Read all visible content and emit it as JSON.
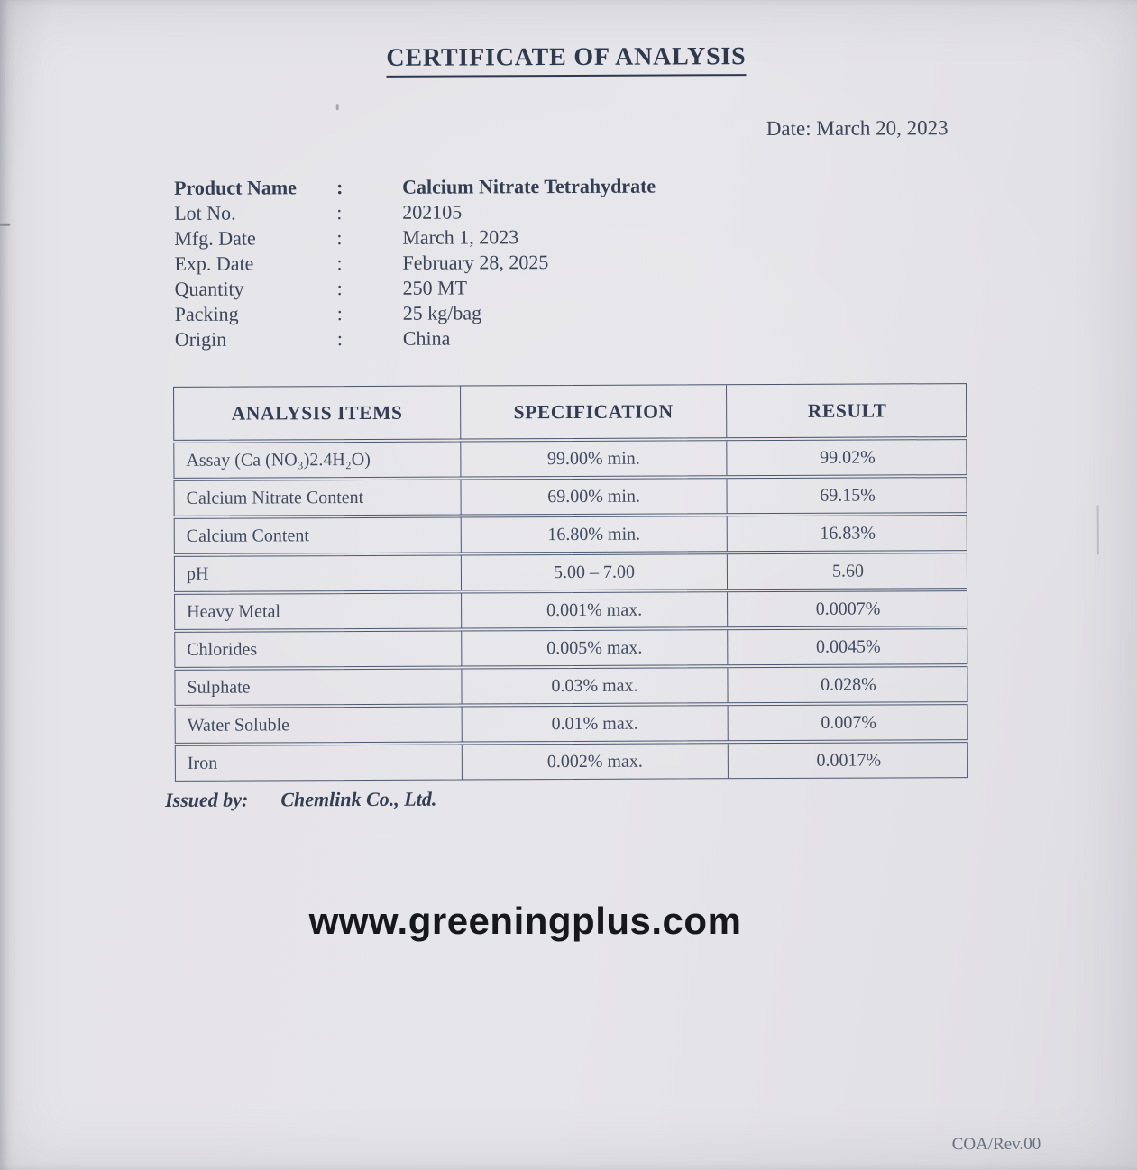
{
  "document": {
    "title": "CERTIFICATE OF ANALYSIS",
    "date_line": "Date: March 20, 2023",
    "info_fields": [
      {
        "label": "Product Name",
        "separator": ":",
        "value": "Calcium Nitrate Tetrahydrate",
        "bold": true
      },
      {
        "label": "Lot No.",
        "separator": ":",
        "value": "202105",
        "bold": false
      },
      {
        "label": "Mfg. Date",
        "separator": ":",
        "value": "March 1, 2023",
        "bold": false
      },
      {
        "label": "Exp. Date",
        "separator": ":",
        "value": "February 28, 2025",
        "bold": false
      },
      {
        "label": "Quantity",
        "separator": ":",
        "value": "250 MT",
        "bold": false
      },
      {
        "label": "Packing",
        "separator": ":",
        "value": "25 kg/bag",
        "bold": false
      },
      {
        "label": "Origin",
        "separator": ":",
        "value": "China",
        "bold": false
      }
    ],
    "table": {
      "headers": [
        "ANALYSIS ITEMS",
        "SPECIFICATION",
        "RESULT"
      ],
      "rows": [
        {
          "item": "Assay (Ca (NO₃)2.4H₂O)",
          "specification": "99.00% min.",
          "result": "99.02%"
        },
        {
          "item": "Calcium Nitrate Content",
          "specification": "69.00% min.",
          "result": "69.15%"
        },
        {
          "item": "Calcium Content",
          "specification": "16.80% min.",
          "result": "16.83%"
        },
        {
          "item": "pH",
          "specification": "5.00 – 7.00",
          "result": "5.60"
        },
        {
          "item": "Heavy Metal",
          "specification": "0.001% max.",
          "result": "0.0007%"
        },
        {
          "item": "Chlorides",
          "specification": "0.005% max.",
          "result": "0.0045%"
        },
        {
          "item": "Sulphate",
          "specification": "0.03% max.",
          "result": "0.028%"
        },
        {
          "item": "Water Soluble",
          "specification": "0.01% max.",
          "result": "0.007%"
        },
        {
          "item": "Iron",
          "specification": "0.002% max.",
          "result": "0.0017%"
        }
      ]
    },
    "issued_by_label": "Issued by:",
    "issued_by_value": "Chemlink Co., Ltd.",
    "watermark": "www.greeningplus.com",
    "footer_rev": "COA/Rev.00",
    "colors": {
      "paper": "#e5e4e8",
      "ink": "#3c4659",
      "table_border": "#4d5870",
      "watermark_ink": "#17181b",
      "footer_ink": "#68707f"
    }
  }
}
